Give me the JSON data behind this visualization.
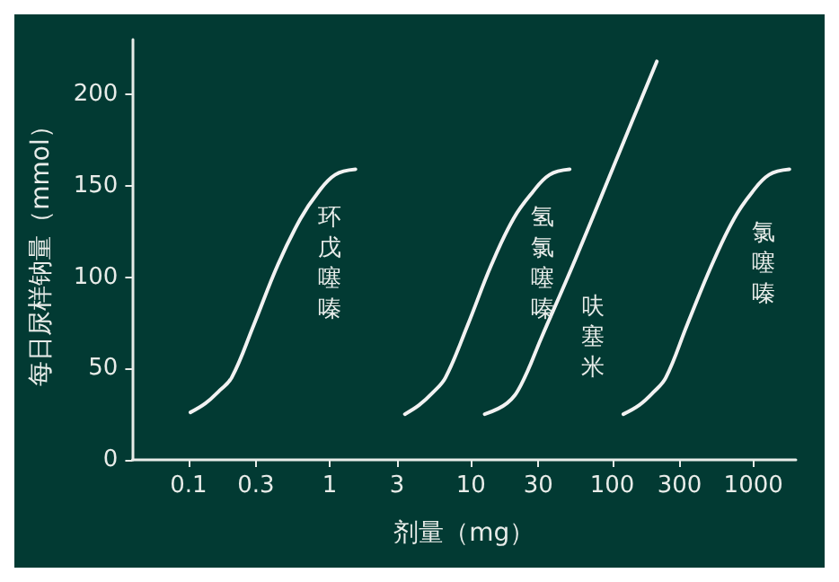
{
  "chart_data": {
    "type": "line",
    "xlabel": "剂量（mg）",
    "ylabel": "每日尿样钠量（mmol）",
    "log": "x",
    "xlim": [
      0.04,
      2000
    ],
    "xticks": [
      0.1,
      0.3,
      1,
      3,
      10,
      30,
      100,
      300,
      1000
    ],
    "ylim": [
      0,
      230
    ],
    "yticks": [
      0,
      50,
      100,
      150,
      200
    ],
    "grid": false,
    "legend": false,
    "marker": "none",
    "series": [
      {
        "name": "环戊噻嗪",
        "color": "#f2f2f2",
        "x": [
          0.103,
          0.132,
          0.166,
          0.202,
          0.29,
          0.43,
          0.62,
          0.82,
          1.09,
          1.52
        ],
        "values": [
          26,
          31,
          38,
          45,
          74,
          107,
          132,
          146,
          156,
          159
        ]
      },
      {
        "name": "氢氯噻嗪",
        "color": "#f2f2f2",
        "x": [
          3.4,
          4.3,
          5.4,
          6.6,
          9.5,
          14,
          20,
          27,
          36,
          50
        ],
        "values": [
          25,
          30,
          37,
          45,
          74,
          107,
          132,
          146,
          156,
          159
        ]
      },
      {
        "name": "呋塞米",
        "color": "#f2f2f2",
        "x": [
          12.5,
          18,
          22.6,
          31.6,
          55,
          112,
          207
        ],
        "values": [
          25,
          31,
          41,
          67,
          110,
          168,
          218
        ]
      },
      {
        "name": "氯噻嗪",
        "color": "#f2f2f2",
        "x": [
          120,
          156,
          196,
          240,
          340,
          510,
          730,
          970,
          1290,
          1800
        ],
        "values": [
          25,
          30,
          37,
          45,
          74,
          107,
          132,
          146,
          156,
          159
        ]
      }
    ]
  }
}
